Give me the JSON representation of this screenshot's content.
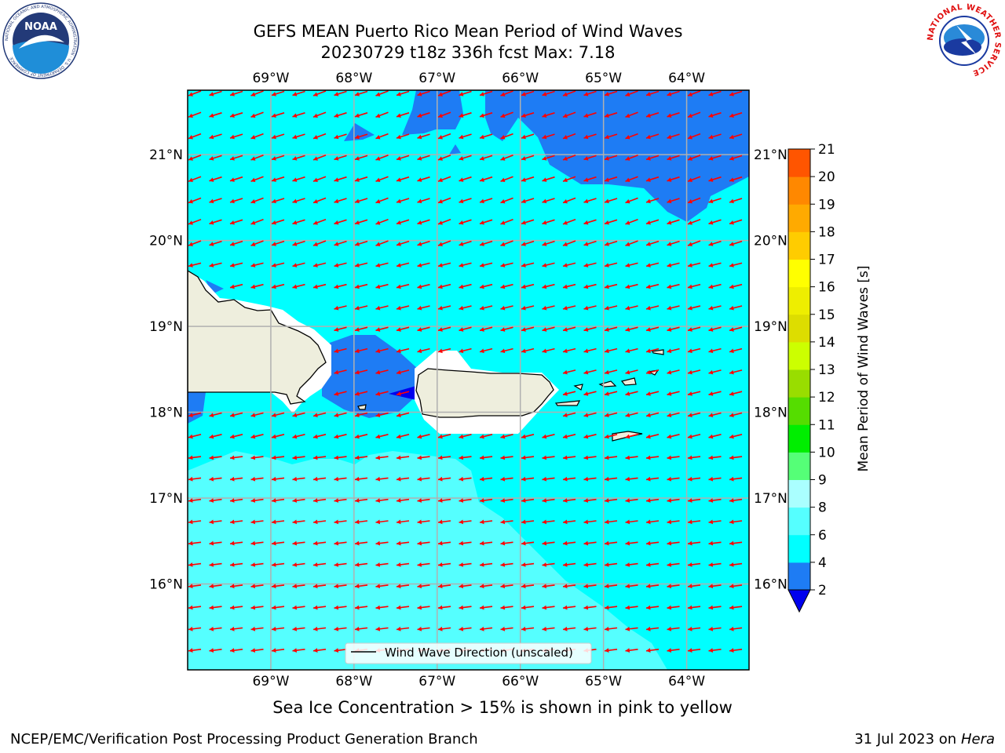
{
  "header": {
    "title_line1": "GEFS MEAN Puerto Rico Mean Period of Wind Waves",
    "title_line2": "20230729 t18z 336h fcst   Max: 7.18"
  },
  "logos": {
    "noaa_text": "NOAA",
    "noaa_ring": "NATIONAL OCEANIC AND ATMOSPHERIC ADMINISTRATION · U.S. DEPARTMENT OF COMMERCE",
    "nws_ring": "NATIONAL WEATHER SERVICE"
  },
  "map": {
    "lon_labels": [
      "69°W",
      "68°W",
      "67°W",
      "66°W",
      "65°W",
      "64°W"
    ],
    "lat_labels": [
      "21°N",
      "20°N",
      "19°N",
      "18°N",
      "17°N",
      "16°N"
    ],
    "lon_range": [
      -70.0,
      -63.25
    ],
    "lat_range": [
      15.0,
      21.75
    ],
    "lons": [
      -69,
      -68,
      -67,
      -66,
      -65,
      -64
    ],
    "lats": [
      21,
      20,
      19,
      18,
      17,
      16
    ],
    "colors": {
      "deep_blue": "#1e7cf4",
      "cyan": "#00ffff",
      "light_cyan": "#55ffff",
      "land": "#eeeedd",
      "arrow": "#ff0000",
      "grid": "#b0b0b0"
    },
    "legend_label": "Wind Wave Direction (unscaled)"
  },
  "colorbar": {
    "label": "Mean Period of Wind Waves [s]",
    "ticks": [
      "2",
      "4",
      "6",
      "8",
      "9",
      "10",
      "11",
      "12",
      "13",
      "14",
      "15",
      "16",
      "17",
      "18",
      "19",
      "20",
      "21"
    ],
    "colors": [
      "#1e7cf4",
      "#00ffff",
      "#55ffff",
      "#aaffff",
      "#55ff77",
      "#00ee00",
      "#55dd00",
      "#99dd00",
      "#ccff00",
      "#dddd00",
      "#eeee00",
      "#ffff00",
      "#ffcc00",
      "#ffaa00",
      "#ff8800",
      "#ff5500",
      "#ee2200",
      "#ff0000"
    ],
    "under_color": "#0000ee"
  },
  "note": "Sea Ice Concentration > 15% is shown in pink to yellow",
  "footer": {
    "left": "NCEP/EMC/Verification Post Processing Product Generation Branch",
    "right_date": "31 Jul 2023 on ",
    "right_machine": "Hera"
  }
}
